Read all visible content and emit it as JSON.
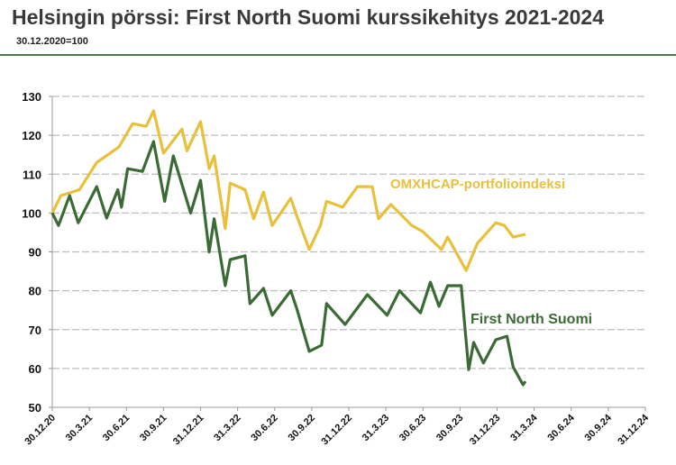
{
  "title": "Helsingin pörssi: First North Suomi kurssikehitys 2021-2024",
  "subtitle": "30.12.2020=100",
  "chart_data": {
    "type": "line",
    "x_unit": "months since 30.12.2020",
    "xlim": [
      0,
      48
    ],
    "ylim": [
      50,
      130
    ],
    "yticks": [
      50,
      60,
      70,
      80,
      90,
      100,
      110,
      120,
      130
    ],
    "xtick_labels": [
      "30.12.20",
      "30.3.21",
      "30.6.21",
      "30.9.21",
      "31.12.21",
      "31.3.22",
      "30.6.22",
      "30.9.22",
      "31.12.22",
      "31.3.23",
      "30.6.23",
      "30.9.23",
      "31.12.23",
      "31.3.24",
      "30.6.24",
      "30.9.24",
      "31.12.24"
    ],
    "grid": true,
    "series": [
      {
        "name": "OMXHCAP-portfolioindeksi",
        "color": "#e9c03c",
        "x": [
          0,
          0.7,
          2.2,
          3.6,
          5.4,
          6.5,
          7.6,
          8.2,
          9.0,
          10.5,
          10.9,
          12,
          12.7,
          13.1,
          14,
          14.4,
          15.6,
          16.3,
          17.1,
          17.8,
          19.3,
          19.8,
          20.8,
          21.7,
          22.2,
          23.5,
          24.7,
          25.9,
          26.4,
          27.4,
          29.1,
          30.0,
          31.5,
          32,
          33.5,
          34.4,
          35.9,
          36.6,
          37.3,
          38.3
        ],
        "y": [
          100,
          104.5,
          106,
          113,
          117,
          123,
          122.3,
          126.3,
          115.4,
          121.6,
          116,
          123.5,
          111.4,
          114.7,
          96,
          107.7,
          106,
          98.5,
          105.4,
          96.8,
          103.8,
          99.2,
          90.6,
          96.8,
          103,
          101.5,
          106.8,
          106.8,
          98.5,
          102.2,
          96.8,
          95.2,
          90.6,
          93.8,
          85.2,
          92.2,
          97.5,
          96.8,
          93.8,
          94.5
        ]
      },
      {
        "name": "First North Suomi",
        "color": "#3b6b34",
        "x": [
          0,
          0.5,
          1.4,
          2.1,
          3.6,
          4.4,
          5.3,
          5.6,
          6.1,
          7.3,
          8.2,
          9.1,
          9.8,
          11.2,
          12,
          12.7,
          13.1,
          14,
          14.4,
          15.6,
          16,
          17.1,
          17.8,
          19.3,
          19.8,
          20.8,
          21.8,
          22.2,
          23.7,
          25.5,
          27.1,
          28.1,
          29.8,
          30.6,
          31.3,
          32,
          33.1,
          33.7,
          34.1,
          34.9,
          35.9,
          36.8,
          37.3,
          38.1,
          38.3
        ],
        "y": [
          100,
          96.8,
          104.5,
          97.5,
          106.8,
          98.7,
          106,
          101.5,
          111.4,
          110.7,
          118.4,
          103,
          114.7,
          100,
          108.4,
          90,
          98.5,
          81.3,
          88,
          89,
          76.7,
          80.6,
          73.7,
          80,
          75.3,
          64.4,
          66,
          76.7,
          71.3,
          79,
          73.7,
          80,
          74.3,
          82.2,
          76,
          81.3,
          81.3,
          59.7,
          66.7,
          61.4,
          67.4,
          68.3,
          60.4,
          55.8,
          56.7
        ]
      }
    ]
  }
}
